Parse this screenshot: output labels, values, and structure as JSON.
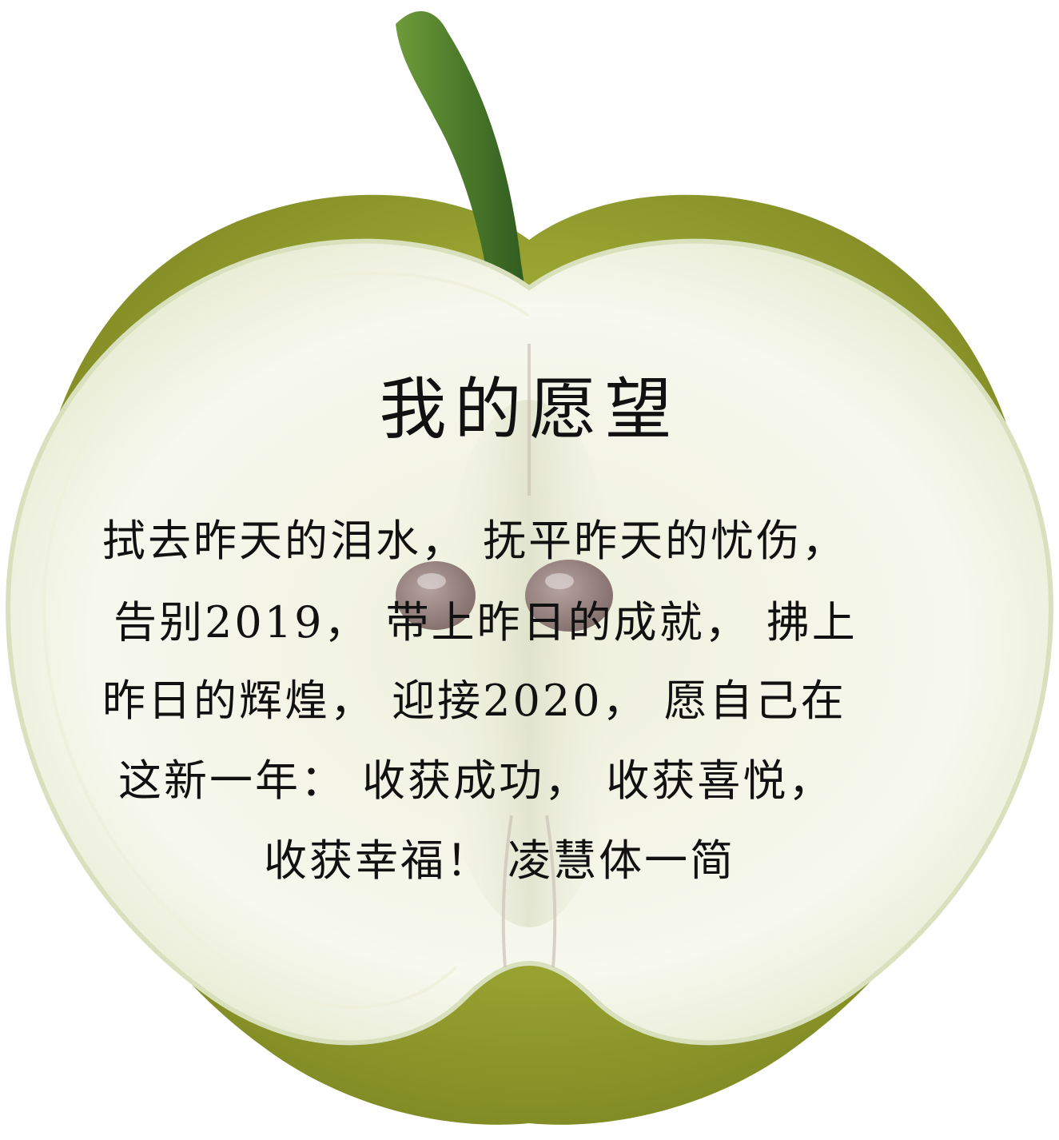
{
  "card": {
    "title": "我的愿望",
    "lines": [
      "拭去昨天的泪水， 抚平昨天的忧伤，",
      "告别2019， 带上昨日的成就， 拂上",
      "昨日的辉煌， 迎接2020， 愿自己在",
      "这新一年： 收获成功， 收获喜悦，",
      "收获幸福！ 凌慧体一简"
    ]
  },
  "colors": {
    "apple_skin": "#9aa532",
    "apple_skin_dark": "#6f7a1e",
    "apple_flesh": "#f6f7ec",
    "flesh_edge": "#dfe6c6",
    "stem": "#4f7f2c",
    "seed": "#9a8582",
    "text": "#111111"
  },
  "icons": {
    "artwork": "green-apple-halved-illustration",
    "seeds": "apple-seed-icon",
    "stem": "apple-stem-icon"
  }
}
